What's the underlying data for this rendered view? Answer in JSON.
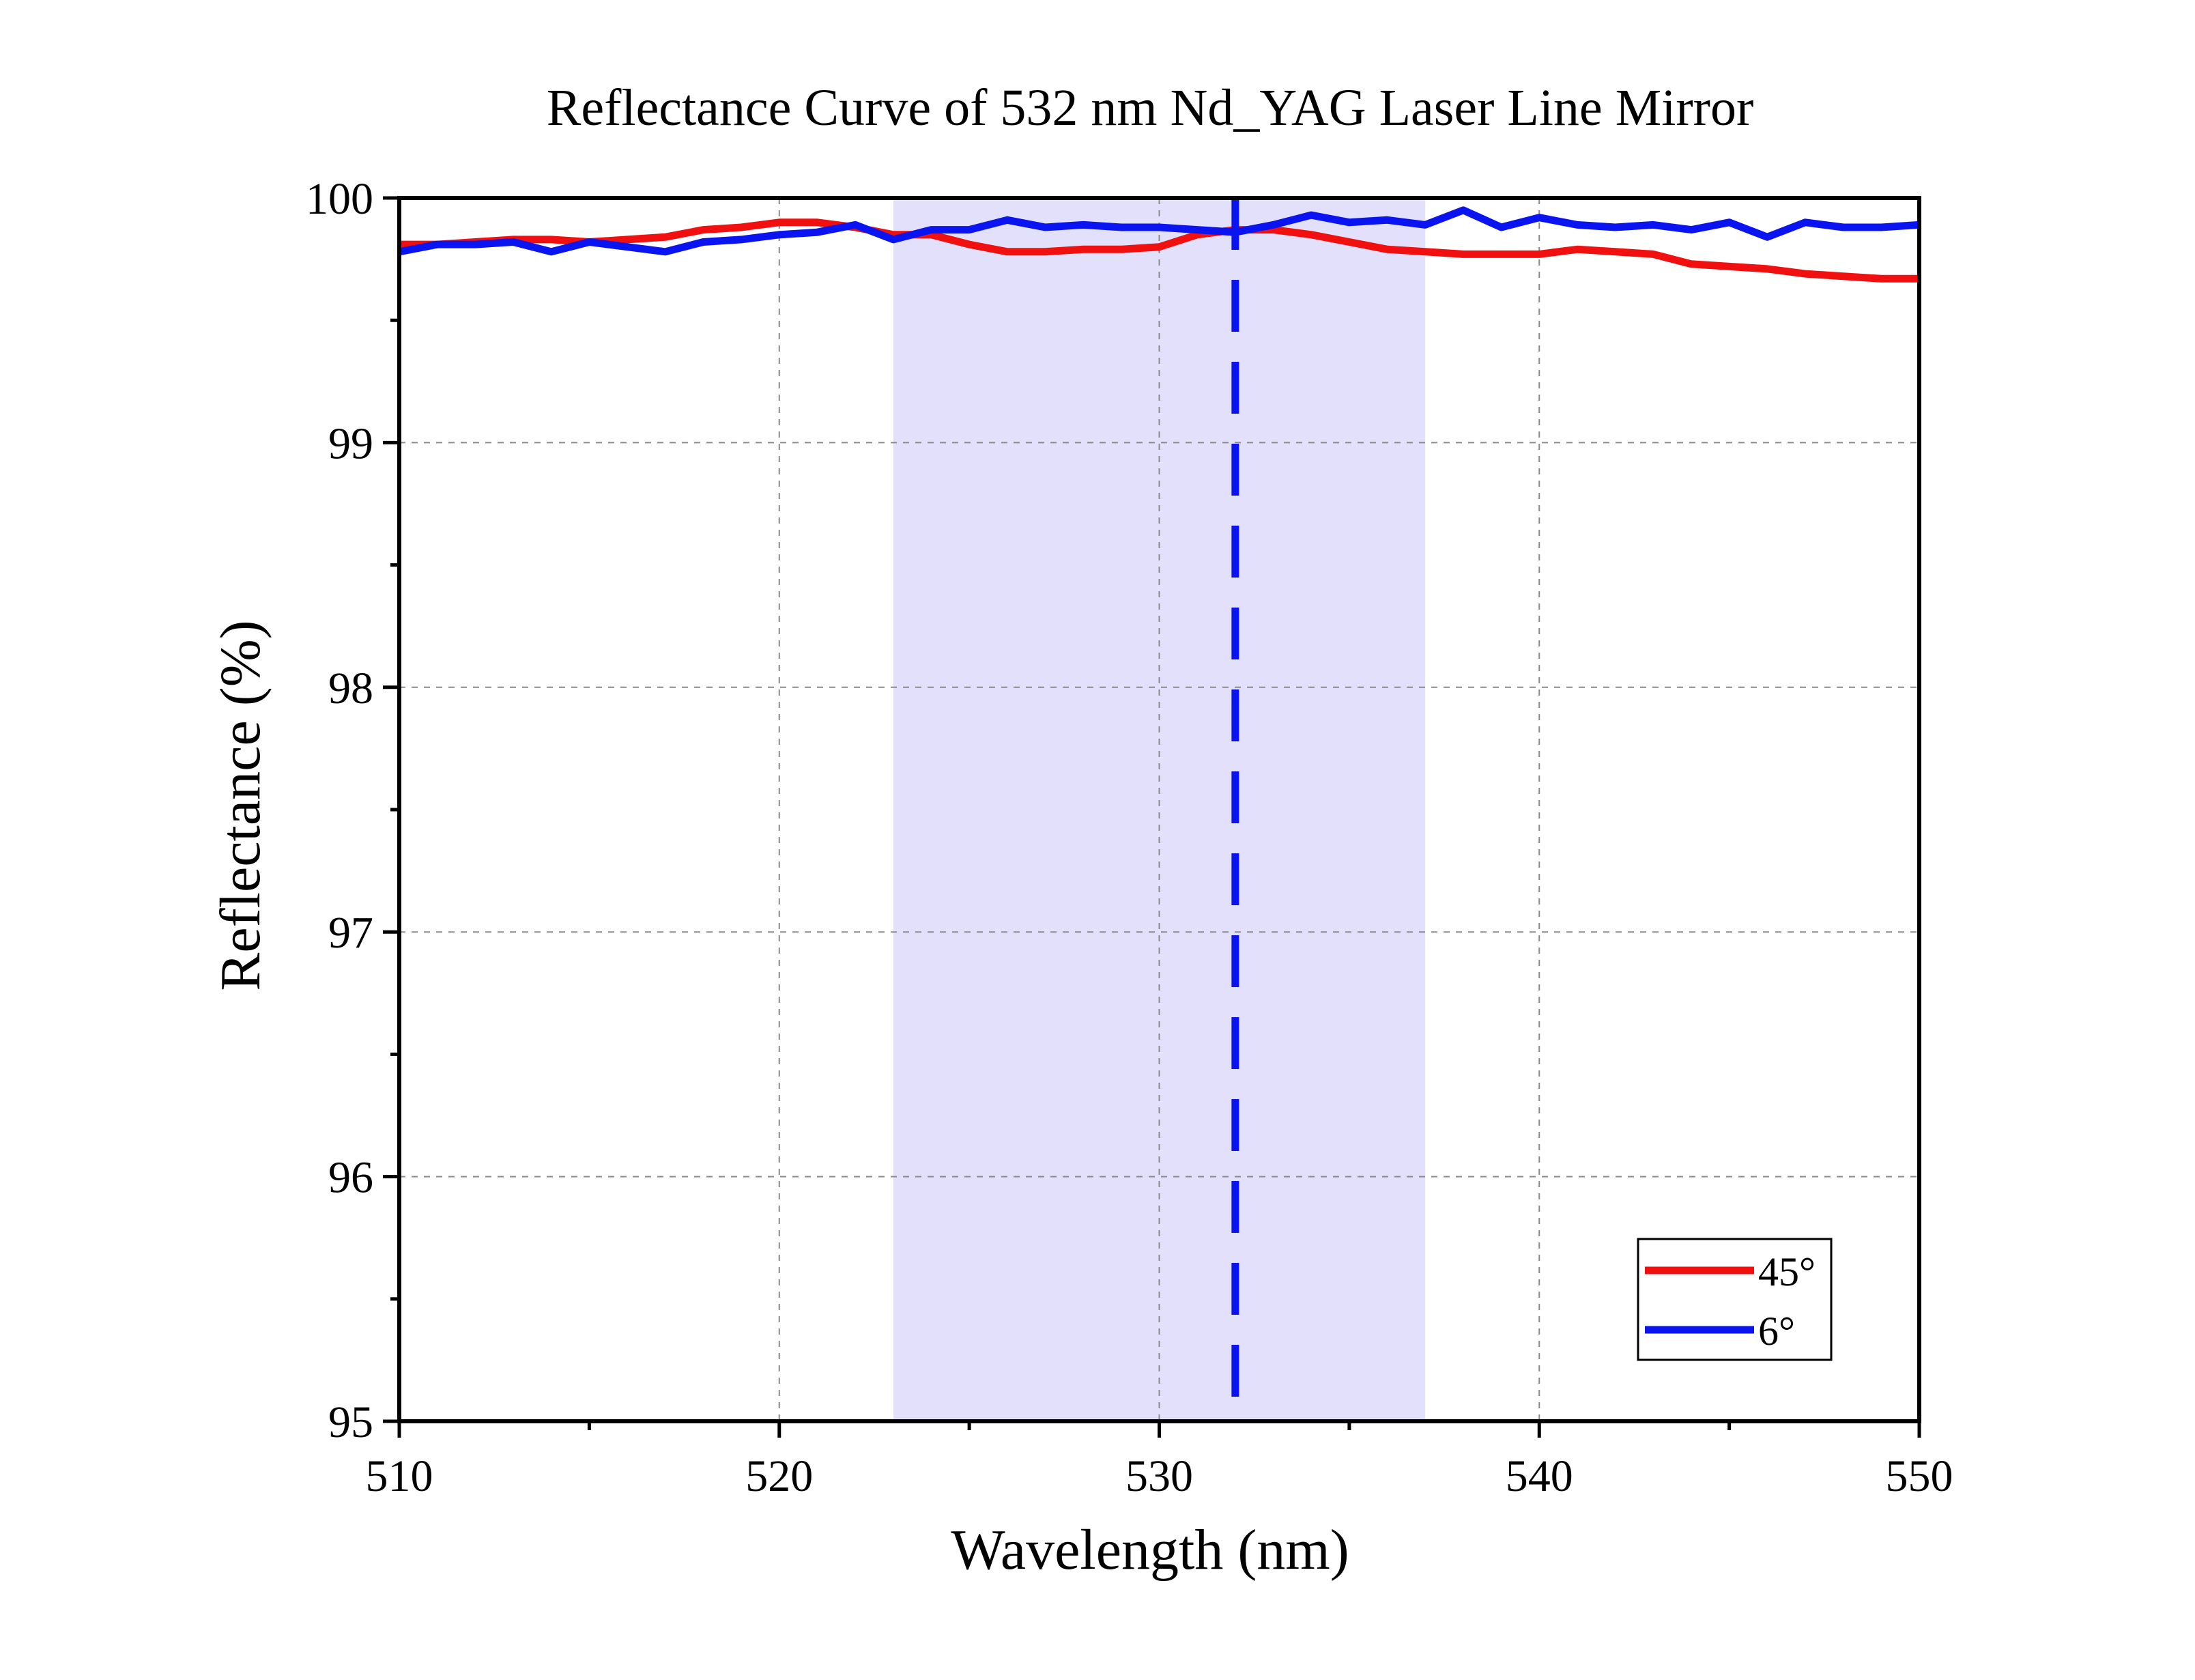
{
  "chart_data": {
    "type": "line",
    "title": "Reflectance Curve of 532 nm Nd_YAG Laser Line Mirror",
    "xlabel": "Wavelength (nm)",
    "ylabel": "Reflectance (%)",
    "xlim": [
      510,
      550
    ],
    "ylim": [
      95,
      100
    ],
    "x_ticks": [
      510,
      520,
      530,
      540,
      550
    ],
    "y_ticks": [
      95,
      96,
      97,
      98,
      99,
      100
    ],
    "grid": true,
    "legend_position": "bottom-right",
    "highlight_band": {
      "x_start": 523,
      "x_end": 537,
      "color": "#e3e0fb"
    },
    "reference_line": {
      "x": 532,
      "style": "dashed",
      "color": "#0a14f0"
    },
    "x": [
      510,
      511,
      512,
      513,
      514,
      515,
      516,
      517,
      518,
      519,
      520,
      521,
      522,
      523,
      524,
      525,
      526,
      527,
      528,
      529,
      530,
      531,
      532,
      533,
      534,
      535,
      536,
      537,
      538,
      539,
      540,
      541,
      542,
      543,
      544,
      545,
      546,
      547,
      548,
      549,
      550
    ],
    "series": [
      {
        "name": "45°",
        "color": "#f01010",
        "values": [
          99.81,
          99.81,
          99.82,
          99.83,
          99.83,
          99.82,
          99.83,
          99.84,
          99.87,
          99.88,
          99.9,
          99.9,
          99.88,
          99.85,
          99.85,
          99.81,
          99.78,
          99.78,
          99.79,
          99.79,
          99.8,
          99.85,
          99.87,
          99.87,
          99.85,
          99.82,
          99.79,
          99.78,
          99.77,
          99.77,
          99.77,
          99.79,
          99.78,
          99.77,
          99.73,
          99.72,
          99.71,
          99.69,
          99.68,
          99.67,
          99.67
        ]
      },
      {
        "name": "6°",
        "color": "#0a14f0",
        "values": [
          99.78,
          99.81,
          99.81,
          99.82,
          99.78,
          99.82,
          99.8,
          99.78,
          99.82,
          99.83,
          99.85,
          99.86,
          99.89,
          99.83,
          99.87,
          99.87,
          99.91,
          99.88,
          99.89,
          99.88,
          99.88,
          99.87,
          99.86,
          99.89,
          99.93,
          99.9,
          99.91,
          99.89,
          99.95,
          99.88,
          99.92,
          99.89,
          99.88,
          99.89,
          99.87,
          99.9,
          99.84,
          99.9,
          99.88,
          99.88,
          99.89
        ]
      }
    ]
  }
}
